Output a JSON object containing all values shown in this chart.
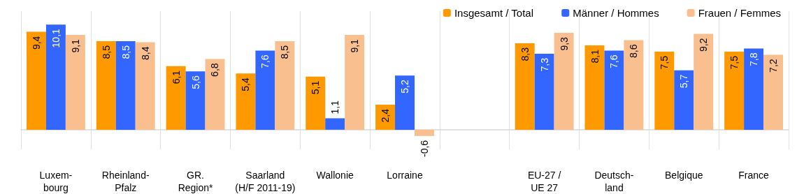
{
  "chart_data": {
    "type": "bar",
    "categories": [
      "Luxem-\nbourg",
      "Rheinland-\nPfalz",
      "GR.\nRegion*",
      "Saarland\n(H/F 2011-19)",
      "Wallonie",
      "Lorraine",
      null,
      "EU-27 /\nUE 27",
      "Deutsch-\nland",
      "Belgique",
      "France"
    ],
    "series": [
      {
        "name": "Insgesamt / Total",
        "color": "#ff9900",
        "values": [
          9.4,
          8.5,
          6.1,
          5.4,
          5.1,
          2.4,
          null,
          8.3,
          8.1,
          7.5,
          7.5
        ],
        "value_labels": [
          "9,4",
          "8,5",
          "6,1",
          "5,4",
          "5,1",
          "2,4",
          null,
          "8,3",
          "8,1",
          "7,5",
          "7,5"
        ]
      },
      {
        "name": "Männer / Hommes",
        "color": "#3366ff",
        "values": [
          10.1,
          8.5,
          5.6,
          7.6,
          1.1,
          5.2,
          null,
          7.3,
          7.6,
          5.7,
          7.8
        ],
        "value_labels": [
          "10,1",
          "8,5",
          "5,6",
          "7,6",
          "1,1",
          "5,2",
          null,
          "7,3",
          "7,6",
          "5,7",
          "7,8"
        ]
      },
      {
        "name": "Frauen / Femmes",
        "color": "#f9bf8f",
        "values": [
          9.1,
          8.4,
          6.8,
          8.5,
          9.1,
          -0.6,
          null,
          9.3,
          8.6,
          9.2,
          7.2
        ],
        "value_labels": [
          "9,1",
          "8,4",
          "6,8",
          "8,5",
          "9,1",
          "-0,6",
          null,
          "9,3",
          "8,6",
          "9,2",
          "7,2"
        ]
      }
    ],
    "legend": "top right",
    "grid": "x"
  }
}
